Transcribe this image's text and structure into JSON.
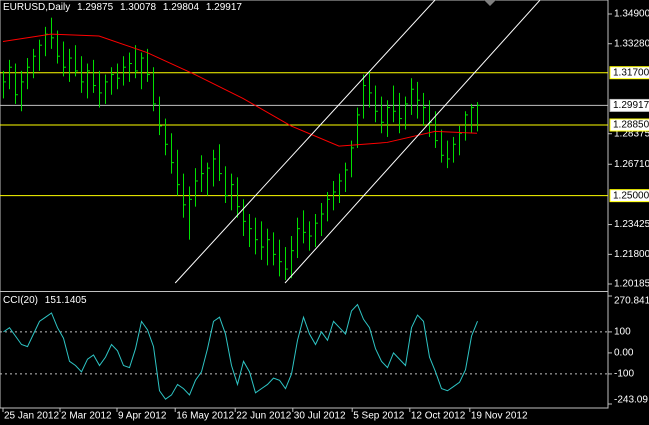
{
  "chart_data": [
    {
      "type": "ohlc",
      "title": "EURUSD,Daily",
      "quote": [
        1.29875,
        1.30078,
        1.29804,
        1.29917
      ],
      "color": "#00e000",
      "high": [
        1.318,
        1.324,
        1.322,
        1.318,
        1.325,
        1.33,
        1.335,
        1.342,
        1.347,
        1.34,
        1.334,
        1.33,
        1.332,
        1.326,
        1.322,
        1.324,
        1.318,
        1.316,
        1.32,
        1.322,
        1.326,
        1.328,
        1.332,
        1.328,
        1.33,
        1.32,
        1.304,
        1.292,
        1.284,
        1.275,
        1.262,
        1.255,
        1.265,
        1.272,
        1.268,
        1.275,
        1.278,
        1.266,
        1.262,
        1.26,
        1.248,
        1.24,
        1.238,
        1.236,
        1.232,
        1.23,
        1.226,
        1.222,
        1.228,
        1.238,
        1.242,
        1.236,
        1.24,
        1.246,
        1.252,
        1.258,
        1.262,
        1.268,
        1.28,
        1.298,
        1.316,
        1.318,
        1.31,
        1.304,
        1.302,
        1.31,
        1.306,
        1.304,
        1.314,
        1.312,
        1.306,
        1.302,
        1.296,
        1.286,
        1.28,
        1.282,
        1.288,
        1.296,
        1.3,
        1.301
      ],
      "low": [
        1.303,
        1.308,
        1.3,
        1.296,
        1.308,
        1.314,
        1.318,
        1.326,
        1.33,
        1.322,
        1.315,
        1.312,
        1.315,
        1.306,
        1.303,
        1.306,
        1.298,
        1.3,
        1.305,
        1.308,
        1.31,
        1.312,
        1.314,
        1.308,
        1.312,
        1.296,
        1.283,
        1.272,
        1.262,
        1.25,
        1.238,
        1.226,
        1.244,
        1.252,
        1.25,
        1.255,
        1.258,
        1.246,
        1.242,
        1.238,
        1.228,
        1.222,
        1.218,
        1.215,
        1.212,
        1.212,
        1.206,
        1.204,
        1.205,
        1.216,
        1.224,
        1.22,
        1.222,
        1.228,
        1.236,
        1.242,
        1.246,
        1.252,
        1.26,
        1.276,
        1.292,
        1.298,
        1.29,
        1.284,
        1.282,
        1.29,
        1.284,
        1.286,
        1.294,
        1.292,
        1.288,
        1.282,
        1.276,
        1.268,
        1.265,
        1.268,
        1.272,
        1.28,
        1.284,
        1.285
      ],
      "close": [
        1.312,
        1.32,
        1.305,
        1.312,
        1.32,
        1.326,
        1.332,
        1.338,
        1.336,
        1.326,
        1.32,
        1.325,
        1.318,
        1.312,
        1.318,
        1.31,
        1.306,
        1.312,
        1.316,
        1.314,
        1.32,
        1.322,
        1.318,
        1.325,
        1.316,
        1.3,
        1.288,
        1.278,
        1.268,
        1.256,
        1.245,
        1.248,
        1.258,
        1.262,
        1.265,
        1.27,
        1.262,
        1.25,
        1.256,
        1.244,
        1.236,
        1.232,
        1.226,
        1.222,
        1.226,
        1.218,
        1.214,
        1.21,
        1.22,
        1.232,
        1.23,
        1.228,
        1.235,
        1.24,
        1.248,
        1.252,
        1.258,
        1.264,
        1.276,
        1.294,
        1.31,
        1.306,
        1.296,
        1.29,
        1.298,
        1.296,
        1.292,
        1.3,
        1.308,
        1.302,
        1.298,
        1.29,
        1.28,
        1.272,
        1.27,
        1.278,
        1.284,
        1.294,
        1.298,
        1.29917
      ],
      "ma": {
        "color": "#ff0000",
        "x": [
          0,
          8,
          16,
          24,
          32,
          40,
          48,
          56,
          64,
          72,
          79
        ],
        "values": [
          1.334,
          1.338,
          1.337,
          1.328,
          1.316,
          1.303,
          1.288,
          1.277,
          1.279,
          1.285,
          1.284
        ]
      },
      "channels": {
        "color": "#ffffff",
        "lines": [
          {
            "x": [
              47,
              89.5
            ],
            "y": [
              1.2024,
              1.3566
            ]
          },
          {
            "x": [
              28.7,
              72
            ],
            "y": [
              1.2024,
              1.3566
            ]
          }
        ]
      },
      "hlines": [
        {
          "value": 1.317,
          "label": "1.31700",
          "color": "#ffff00"
        },
        {
          "value": 1.2885,
          "label": "1.28850",
          "color": "#ffff00"
        },
        {
          "value": 1.25,
          "label": "1.25000",
          "color": "#ffff00"
        },
        {
          "value": 1.29917,
          "color": "#c0c0c0"
        }
      ],
      "ylim": [
        1.19858,
        1.35663
      ],
      "yticks": [
        {
          "value": 1.349,
          "label": "1.34900"
        },
        {
          "value": 1.3328,
          "label": "1.33280"
        },
        1.28375,
        {
          "value": 1.2671,
          "label": "1.26710"
        },
        1.23425,
        {
          "value": 1.218,
          "label": "1.21800"
        },
        1.20185
      ],
      "xlim": [
        -0.5,
        100.83
      ],
      "xticks": [
        {
          "value": 0,
          "label": "25 Jan 2012"
        },
        {
          "value": 9.5,
          "label": "2 Mar 2012"
        },
        {
          "value": 19,
          "label": "9 Apr 2012"
        },
        {
          "value": 28.7,
          "label": "16 May 2012"
        },
        {
          "value": 38.7,
          "label": "22 Jun 2012"
        },
        {
          "value": 48.3,
          "label": "30 Jul 2012"
        },
        {
          "value": 58.2,
          "label": "5 Sep 2012"
        },
        {
          "value": 67.8,
          "label": "12 Oct 2012"
        },
        {
          "value": 77.8,
          "label": "19 Nov 2012"
        }
      ]
    },
    {
      "type": "line",
      "title": "CCI(20)",
      "value": 151.1405,
      "color": "#2ec4c4",
      "values": [
        100,
        120,
        80,
        40,
        30,
        90,
        150,
        170,
        190,
        120,
        70,
        -40,
        -60,
        -90,
        -30,
        -10,
        -60,
        -20,
        40,
        10,
        -60,
        -70,
        20,
        150,
        110,
        30,
        -180,
        -220,
        -200,
        -150,
        -170,
        -200,
        -130,
        -90,
        20,
        150,
        170,
        90,
        -60,
        -150,
        -40,
        -90,
        -190,
        -170,
        -150,
        -120,
        -130,
        -170,
        -100,
        60,
        170,
        90,
        40,
        100,
        60,
        150,
        120,
        90,
        200,
        230,
        160,
        120,
        20,
        -40,
        -70,
        0,
        -30,
        -60,
        120,
        180,
        150,
        -20,
        -90,
        -170,
        -180,
        -160,
        -140,
        -80,
        80,
        151.1405
      ],
      "levels": [
        100,
        -100
      ],
      "ylim": [
        -243.09,
        270.8412
      ],
      "yticks": [
        270.8412,
        100,
        {
          "value": 0,
          "label": "0.00"
        },
        -100,
        -243.09
      ]
    }
  ]
}
